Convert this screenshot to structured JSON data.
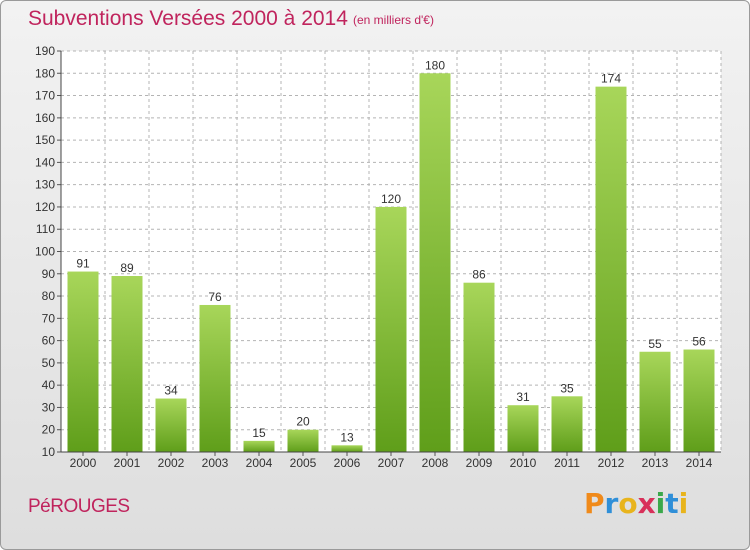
{
  "header": {
    "title": "Subventions Versées 2000 à 2014",
    "subtitle": "(en milliers d'€)"
  },
  "footer": {
    "commune": "PéROUGES",
    "logo_text": "Proxiti",
    "logo_colors": [
      "#f08a1a",
      "#2f8fd8",
      "#e8b41c",
      "#d8305a",
      "#3aa84a",
      "#2f8fd8",
      "#e8b41c"
    ]
  },
  "colors": {
    "bar_light": "#a8d65a",
    "bar_dark": "#5f9e1a",
    "text": "#c0245d",
    "grid": "#b4b4b4"
  },
  "chart_data": {
    "type": "bar",
    "categories": [
      "2000",
      "2001",
      "2002",
      "2003",
      "2004",
      "2005",
      "2006",
      "2007",
      "2008",
      "2009",
      "2010",
      "2011",
      "2012",
      "2013",
      "2014"
    ],
    "values": [
      91,
      89,
      34,
      76,
      15,
      20,
      13,
      120,
      180,
      86,
      31,
      35,
      174,
      55,
      56
    ],
    "ylim": [
      10,
      190
    ],
    "yticks": [
      10,
      20,
      30,
      40,
      50,
      60,
      70,
      80,
      90,
      100,
      110,
      120,
      130,
      140,
      150,
      160,
      170,
      180,
      190
    ],
    "grid": true,
    "data_labels": true
  }
}
